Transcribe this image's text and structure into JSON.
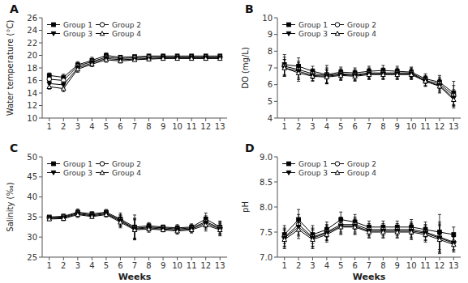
{
  "chart_data": [
    {
      "type": "line",
      "title": "A",
      "ylabel": "Water temperature (°C)",
      "x": [
        1,
        2,
        3,
        4,
        5,
        6,
        7,
        8,
        9,
        10,
        11,
        12,
        13
      ],
      "xlim": [
        0.5,
        13.5
      ],
      "xticks": [
        1,
        2,
        3,
        4,
        5,
        6,
        7,
        8,
        9,
        10,
        11,
        12,
        13
      ],
      "ylim": [
        10,
        26
      ],
      "yticks": [
        10,
        12,
        14,
        16,
        18,
        20,
        22,
        24,
        26
      ],
      "grid": false,
      "legend": "upper left",
      "series": [
        {
          "name": "Group 1",
          "color": "black",
          "marker": "filled-square",
          "line_style": "solid",
          "values": [
            16.8,
            16.5,
            18.5,
            19.2,
            20.0,
            19.7,
            19.8,
            19.9,
            19.9,
            19.9,
            19.9,
            19.9,
            19.9
          ],
          "errors": [
            0.4,
            0.5,
            0.5,
            0.5,
            0.4,
            0.3,
            0.2,
            0.2,
            0.2,
            0.2,
            0.2,
            0.2,
            0.2
          ]
        },
        {
          "name": "Group 2",
          "color": "black",
          "marker": "open-circle",
          "line_style": "solid",
          "values": [
            16.2,
            16.0,
            18.3,
            19.0,
            19.7,
            19.5,
            19.6,
            19.7,
            19.7,
            19.7,
            19.7,
            19.7,
            19.7
          ],
          "errors": [
            0.4,
            0.5,
            0.5,
            0.5,
            0.4,
            0.3,
            0.2,
            0.2,
            0.2,
            0.2,
            0.2,
            0.2,
            0.2
          ]
        },
        {
          "name": "Group 3",
          "color": "black",
          "marker": "filled-triangle-down",
          "line_style": "solid",
          "values": [
            15.5,
            15.3,
            18.0,
            18.8,
            19.5,
            19.3,
            19.4,
            19.5,
            19.6,
            19.6,
            19.6,
            19.6,
            19.6
          ],
          "errors": [
            0.4,
            0.5,
            0.5,
            0.4,
            0.4,
            0.3,
            0.2,
            0.2,
            0.2,
            0.2,
            0.2,
            0.2,
            0.2
          ]
        },
        {
          "name": "Group 4",
          "color": "black",
          "marker": "open-triangle-up",
          "line_style": "solid",
          "values": [
            15.0,
            14.7,
            17.8,
            18.6,
            19.3,
            19.1,
            19.3,
            19.4,
            19.5,
            19.5,
            19.5,
            19.5,
            19.5
          ],
          "errors": [
            0.4,
            0.5,
            0.5,
            0.4,
            0.4,
            0.3,
            0.2,
            0.2,
            0.2,
            0.2,
            0.2,
            0.2,
            0.2
          ]
        }
      ]
    },
    {
      "type": "line",
      "title": "B",
      "ylabel": "DO (mg/L)",
      "x": [
        1,
        2,
        3,
        4,
        5,
        6,
        7,
        8,
        9,
        10,
        11,
        12,
        13
      ],
      "xlim": [
        0.5,
        13.5
      ],
      "xticks": [
        1,
        2,
        3,
        4,
        5,
        6,
        7,
        8,
        9,
        10,
        11,
        12,
        13
      ],
      "ylim": [
        4,
        10
      ],
      "yticks": [
        4,
        5,
        6,
        7,
        8,
        9,
        10
      ],
      "grid": false,
      "legend": "upper left",
      "series": [
        {
          "name": "Group 1",
          "color": "black",
          "marker": "filled-square",
          "line_style": "solid",
          "values": [
            7.2,
            7.1,
            6.8,
            6.6,
            6.75,
            6.7,
            6.8,
            6.85,
            6.8,
            6.75,
            6.35,
            6.15,
            5.5
          ],
          "errors": [
            0.6,
            0.5,
            0.3,
            0.55,
            0.3,
            0.3,
            0.3,
            0.3,
            0.3,
            0.3,
            0.3,
            0.4,
            0.7
          ]
        },
        {
          "name": "Group 2",
          "color": "black",
          "marker": "open-circle",
          "line_style": "solid",
          "values": [
            7.1,
            6.9,
            6.65,
            6.55,
            6.65,
            6.6,
            6.7,
            6.7,
            6.7,
            6.7,
            6.25,
            6.05,
            5.35
          ],
          "errors": [
            0.55,
            0.5,
            0.3,
            0.45,
            0.3,
            0.3,
            0.3,
            0.3,
            0.3,
            0.3,
            0.3,
            0.4,
            0.6
          ]
        },
        {
          "name": "Group 3",
          "color": "black",
          "marker": "filled-triangle-down",
          "line_style": "solid",
          "values": [
            7.0,
            6.8,
            6.55,
            6.5,
            6.6,
            6.55,
            6.65,
            6.65,
            6.65,
            6.65,
            6.2,
            5.95,
            5.2
          ],
          "errors": [
            0.5,
            0.5,
            0.3,
            0.4,
            0.3,
            0.3,
            0.3,
            0.3,
            0.3,
            0.3,
            0.3,
            0.4,
            0.5
          ]
        },
        {
          "name": "Group 4",
          "color": "black",
          "marker": "open-triangle-up",
          "line_style": "solid",
          "values": [
            7.0,
            6.7,
            6.5,
            6.45,
            6.55,
            6.5,
            6.6,
            6.6,
            6.6,
            6.6,
            6.2,
            5.9,
            5.1
          ],
          "errors": [
            0.5,
            0.5,
            0.3,
            0.4,
            0.3,
            0.3,
            0.3,
            0.3,
            0.3,
            0.3,
            0.3,
            0.4,
            0.5
          ]
        }
      ]
    },
    {
      "type": "line",
      "title": "C",
      "ylabel": "Salinity (‰)",
      "xlabel": "Weeks",
      "x": [
        1,
        2,
        3,
        4,
        5,
        6,
        7,
        8,
        9,
        10,
        11,
        12,
        13
      ],
      "xlim": [
        0.5,
        13.5
      ],
      "xticks": [
        1,
        2,
        3,
        4,
        5,
        6,
        7,
        8,
        9,
        10,
        11,
        12,
        13
      ],
      "ylim": [
        25,
        50
      ],
      "yticks": [
        25,
        30,
        35,
        40,
        45,
        50
      ],
      "grid": false,
      "legend": "upper left",
      "series": [
        {
          "name": "Group 1",
          "color": "black",
          "marker": "filled-square",
          "line_style": "solid",
          "values": [
            35.0,
            35.2,
            36.2,
            35.8,
            36.2,
            34.5,
            32.5,
            32.8,
            32.5,
            32.3,
            32.5,
            34.5,
            32.5
          ],
          "errors": [
            0.3,
            0.5,
            0.8,
            0.5,
            0.7,
            1.5,
            3.0,
            0.8,
            0.5,
            0.8,
            0.8,
            1.5,
            1.5
          ]
        },
        {
          "name": "Group 2",
          "color": "black",
          "marker": "open-circle",
          "line_style": "solid",
          "values": [
            34.8,
            35.0,
            36.0,
            35.5,
            36.0,
            34.2,
            32.2,
            32.5,
            32.3,
            32.0,
            32.3,
            33.8,
            32.3
          ],
          "errors": [
            0.3,
            0.5,
            0.7,
            0.5,
            0.6,
            1.4,
            2.5,
            0.8,
            0.5,
            0.8,
            0.8,
            1.5,
            1.5
          ]
        },
        {
          "name": "Group 3",
          "color": "black",
          "marker": "filled-triangle-down",
          "line_style": "solid",
          "values": [
            34.7,
            34.8,
            35.8,
            35.3,
            35.8,
            34.0,
            32.0,
            32.3,
            32.0,
            31.8,
            32.0,
            33.5,
            32.0
          ],
          "errors": [
            0.3,
            0.5,
            0.7,
            0.5,
            0.6,
            1.4,
            2.5,
            0.8,
            0.5,
            0.8,
            0.8,
            1.5,
            1.5
          ]
        },
        {
          "name": "Group 4",
          "color": "black",
          "marker": "open-triangle-up",
          "line_style": "solid",
          "values": [
            34.5,
            34.6,
            35.6,
            35.1,
            35.6,
            33.7,
            31.8,
            32.0,
            31.8,
            31.5,
            31.8,
            33.0,
            31.8
          ],
          "errors": [
            0.3,
            0.5,
            0.7,
            0.5,
            0.6,
            1.4,
            2.5,
            0.8,
            0.5,
            0.8,
            0.8,
            1.5,
            1.5
          ]
        }
      ]
    },
    {
      "type": "line",
      "title": "D",
      "ylabel": "pH",
      "xlabel": "Weeks",
      "x": [
        1,
        2,
        3,
        4,
        5,
        6,
        7,
        8,
        9,
        10,
        11,
        12,
        13
      ],
      "xlim": [
        0.5,
        13.5
      ],
      "xticks": [
        1,
        2,
        3,
        4,
        5,
        6,
        7,
        8,
        9,
        10,
        11,
        12,
        13
      ],
      "ylim": [
        7.0,
        9.0
      ],
      "yticks": [
        {
          "value": 7.0,
          "label": "7.0"
        },
        7.5,
        {
          "value": 8.0,
          "label": "8.0"
        },
        8.5,
        {
          "value": 9.0,
          "label": "9.0"
        }
      ],
      "grid": false,
      "legend": "upper left",
      "series": [
        {
          "name": "Group 1",
          "color": "black",
          "marker": "filled-square",
          "line_style": "solid",
          "values": [
            7.45,
            7.75,
            7.45,
            7.55,
            7.75,
            7.7,
            7.6,
            7.6,
            7.6,
            7.6,
            7.55,
            7.5,
            7.45
          ],
          "errors": [
            0.18,
            0.2,
            0.18,
            0.15,
            0.15,
            0.15,
            0.12,
            0.12,
            0.12,
            0.15,
            0.15,
            0.35,
            0.15
          ]
        },
        {
          "name": "Group 2",
          "color": "black",
          "marker": "open-circle",
          "line_style": "solid",
          "values": [
            7.4,
            7.65,
            7.4,
            7.5,
            7.65,
            7.65,
            7.55,
            7.55,
            7.55,
            7.55,
            7.5,
            7.4,
            7.3
          ],
          "errors": [
            0.18,
            0.2,
            0.18,
            0.15,
            0.15,
            0.15,
            0.12,
            0.12,
            0.12,
            0.15,
            0.15,
            0.3,
            0.15
          ]
        },
        {
          "name": "Group 3",
          "color": "black",
          "marker": "filled-triangle-down",
          "line_style": "solid",
          "values": [
            7.38,
            7.6,
            7.38,
            7.48,
            7.62,
            7.62,
            7.52,
            7.52,
            7.52,
            7.52,
            7.48,
            7.38,
            7.28
          ],
          "errors": [
            0.18,
            0.18,
            0.18,
            0.15,
            0.15,
            0.15,
            0.12,
            0.12,
            0.12,
            0.15,
            0.15,
            0.28,
            0.15
          ]
        },
        {
          "name": "Group 4",
          "color": "black",
          "marker": "open-triangle-up",
          "line_style": "solid",
          "values": [
            7.35,
            7.55,
            7.35,
            7.45,
            7.6,
            7.6,
            7.5,
            7.5,
            7.5,
            7.5,
            7.45,
            7.35,
            7.25
          ],
          "errors": [
            0.18,
            0.18,
            0.18,
            0.15,
            0.15,
            0.15,
            0.12,
            0.12,
            0.12,
            0.15,
            0.15,
            0.28,
            0.15
          ]
        }
      ]
    }
  ]
}
